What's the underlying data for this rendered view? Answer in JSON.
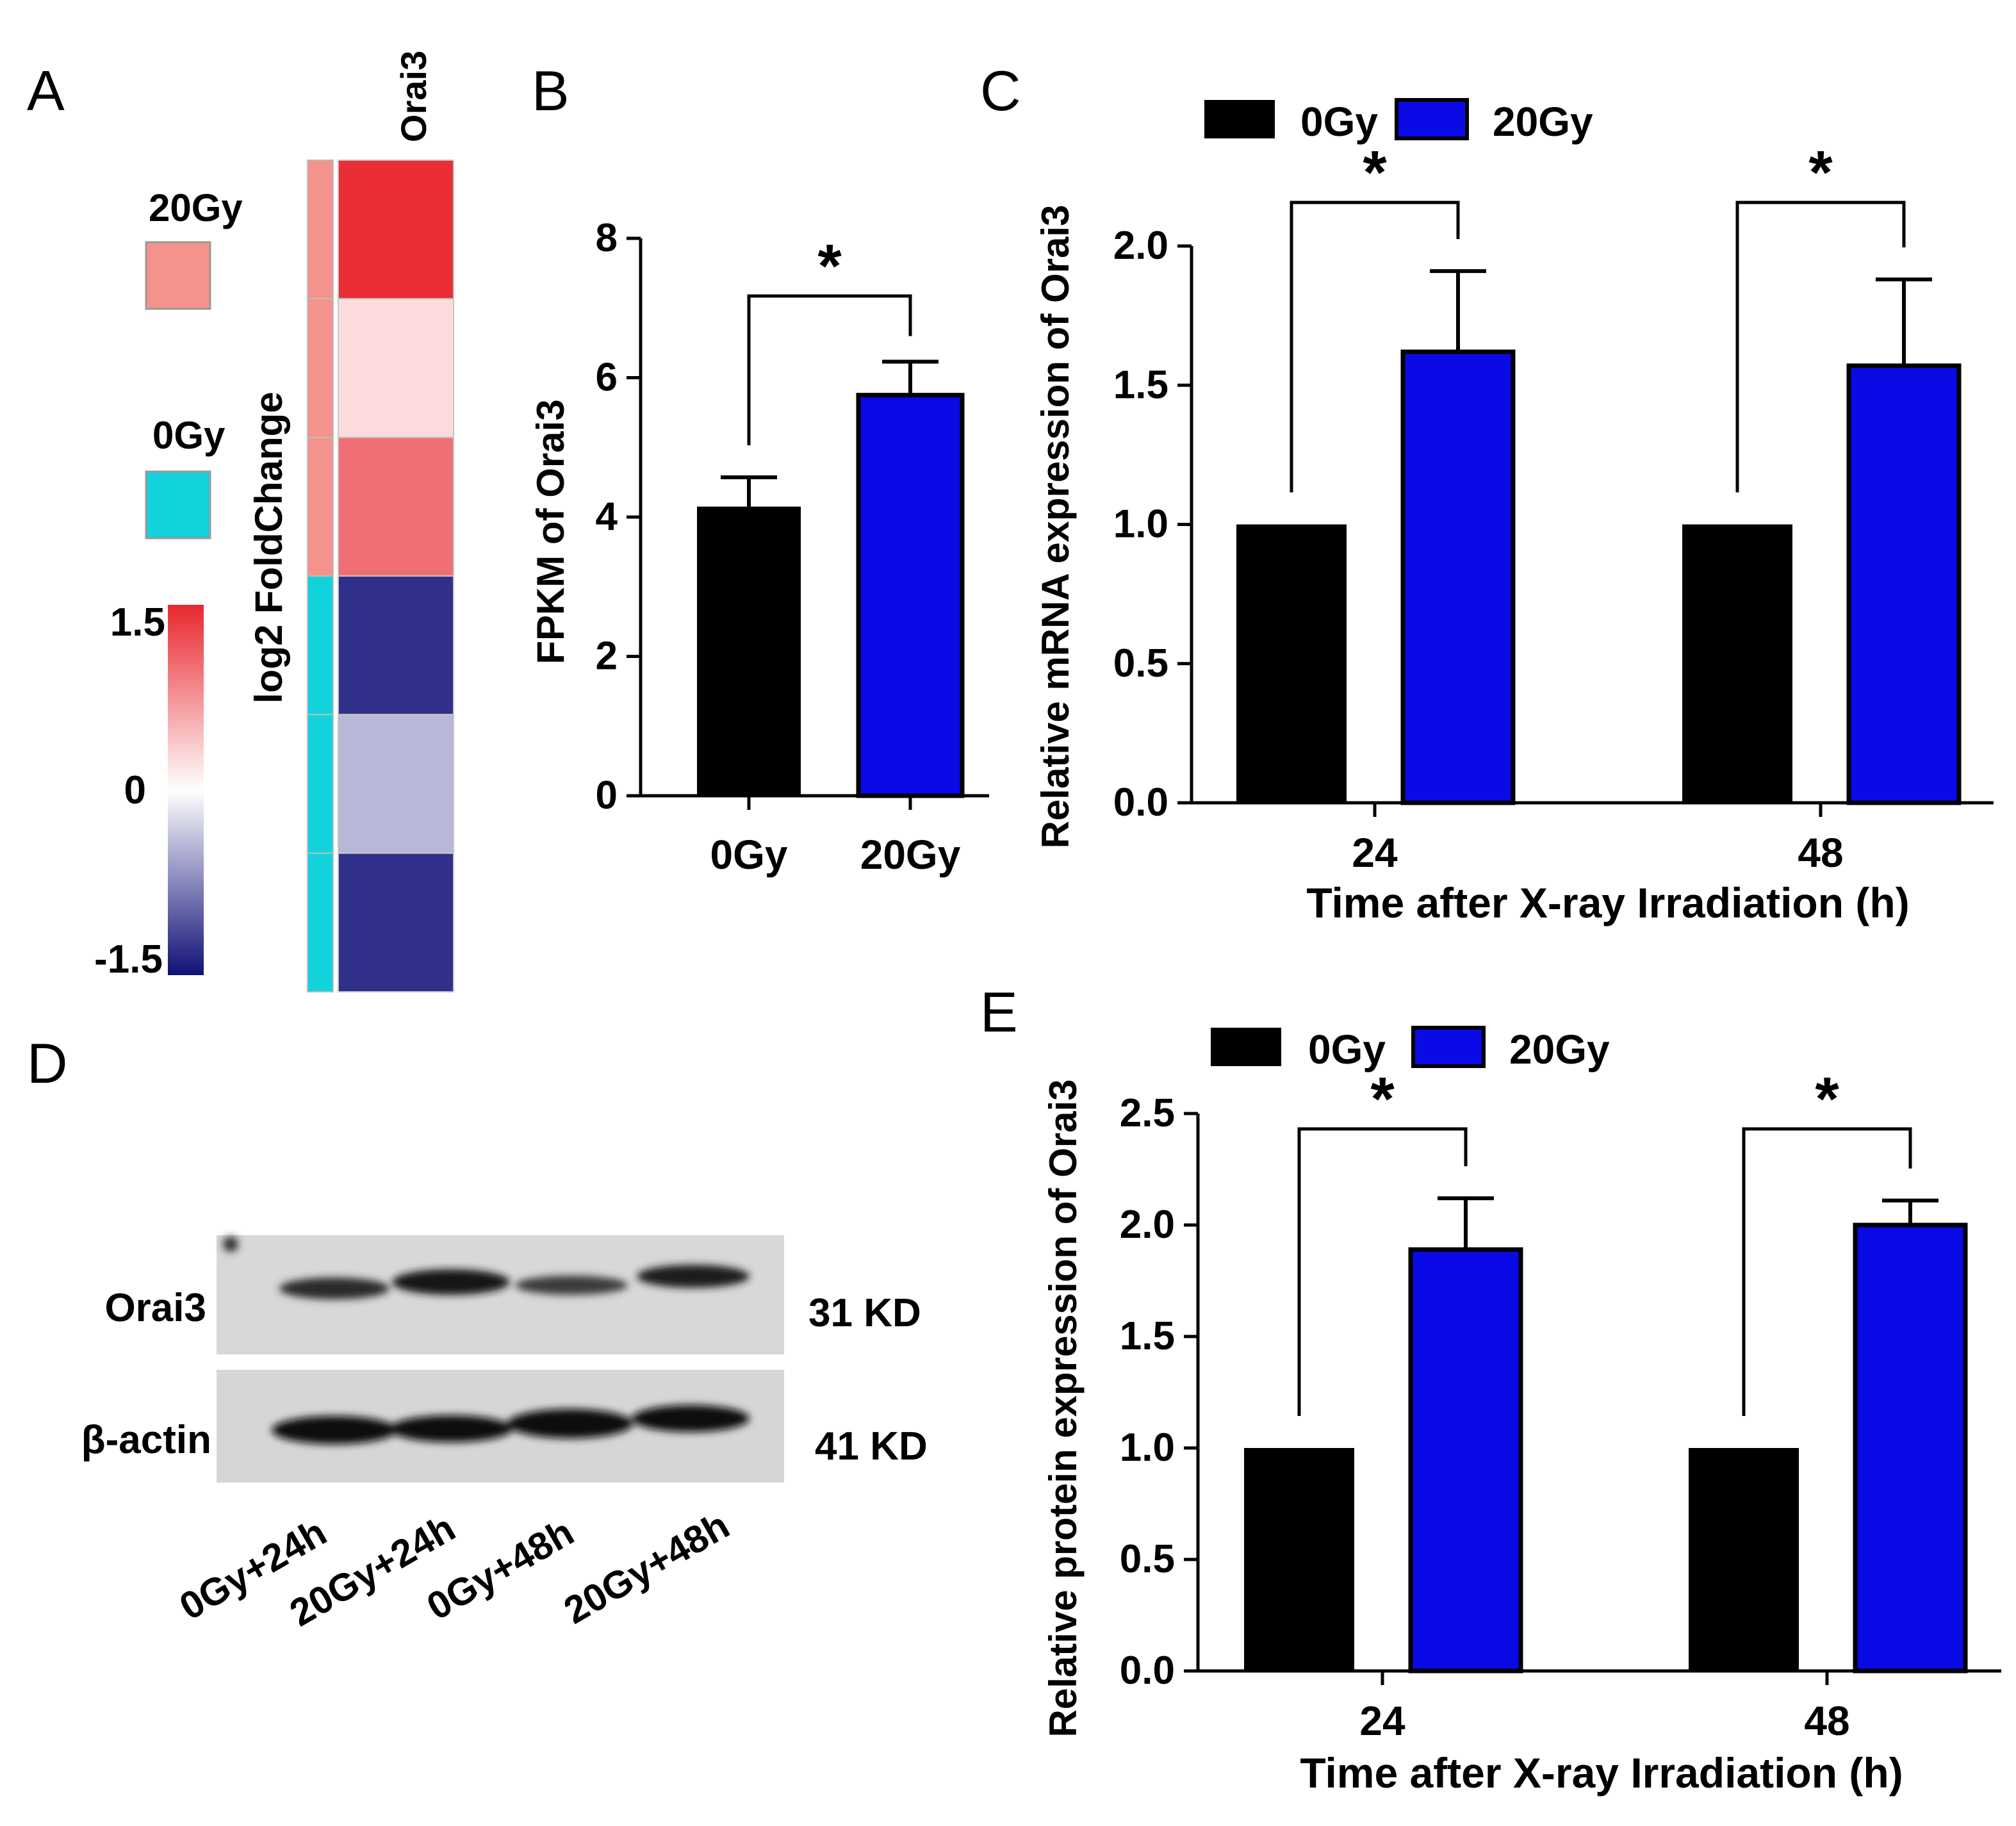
{
  "panels": {
    "A": "A",
    "B": "B",
    "C": "C",
    "D": "D",
    "E": "E"
  },
  "colors": {
    "ctrl": "#000000",
    "irr": "#0a0ae6",
    "group20": "#f4928c",
    "group0": "#12d3dc",
    "heat_hi": "#e8272e",
    "heat_lo": "#101078"
  },
  "chart_data": [
    {
      "id": "A",
      "type": "heatmap",
      "column_label": "Orai3",
      "colorbar_label": "log2 FoldChange",
      "colorbar_ticks": [
        "1.5",
        "0",
        "-1.5"
      ],
      "clim": [
        -1.5,
        1.5
      ],
      "legend": [
        {
          "label": "20Gy",
          "color": "#f4928c"
        },
        {
          "label": "0Gy",
          "color": "#12d3dc"
        }
      ],
      "rows": [
        {
          "group": "20Gy",
          "value": 1.45
        },
        {
          "group": "20Gy",
          "value": 0.25
        },
        {
          "group": "20Gy",
          "value": 1.0
        },
        {
          "group": "0Gy",
          "value": -1.3
        },
        {
          "group": "0Gy",
          "value": -0.45
        },
        {
          "group": "0Gy",
          "value": -1.3
        }
      ]
    },
    {
      "id": "B",
      "type": "bar",
      "ylabel": "FPKM of Orai3",
      "categories": [
        "0Gy",
        "20Gy"
      ],
      "values": [
        4.15,
        5.75
      ],
      "errors": [
        0.42,
        0.48
      ],
      "ylim": [
        0,
        8
      ],
      "yticks": [
        "0",
        "2",
        "4",
        "6",
        "8"
      ],
      "significance": "*"
    },
    {
      "id": "C",
      "type": "bar",
      "xlabel": "Time after X-ray Irradiation (h)",
      "ylabel": "Relative mRNA expression of  Orai3",
      "categories": [
        "24",
        "48"
      ],
      "ylim": [
        0,
        2.0
      ],
      "yticks": [
        "0.0",
        "0.5",
        "1.0",
        "1.5",
        "2.0"
      ],
      "series": [
        {
          "name": "0Gy",
          "values": [
            1.0,
            1.0
          ],
          "errors": [
            0,
            0
          ]
        },
        {
          "name": "20Gy",
          "values": [
            1.62,
            1.57
          ],
          "errors": [
            0.29,
            0.31
          ]
        }
      ],
      "significance": [
        "*",
        "*"
      ]
    },
    {
      "id": "D",
      "type": "blot",
      "bands": [
        {
          "label": "Orai3",
          "size": "31 KD"
        },
        {
          "label": "β-actin",
          "size": "41 KD"
        }
      ],
      "lanes": [
        "0Gy+24h",
        "20Gy+24h",
        "0Gy+48h",
        "20Gy+48h"
      ]
    },
    {
      "id": "E",
      "type": "bar",
      "xlabel": "Time after X-ray Irradiation (h)",
      "ylabel": "Relative protein expression of Orai3",
      "categories": [
        "24",
        "48"
      ],
      "ylim": [
        0,
        2.5
      ],
      "yticks": [
        "0.0",
        "0.5",
        "1.0",
        "1.5",
        "2.0",
        "2.5"
      ],
      "series": [
        {
          "name": "0Gy",
          "values": [
            1.0,
            1.0
          ],
          "errors": [
            0,
            0
          ]
        },
        {
          "name": "20Gy",
          "values": [
            1.89,
            2.0
          ],
          "errors": [
            0.23,
            0.11
          ]
        }
      ],
      "significance": [
        "*",
        "*"
      ]
    }
  ]
}
